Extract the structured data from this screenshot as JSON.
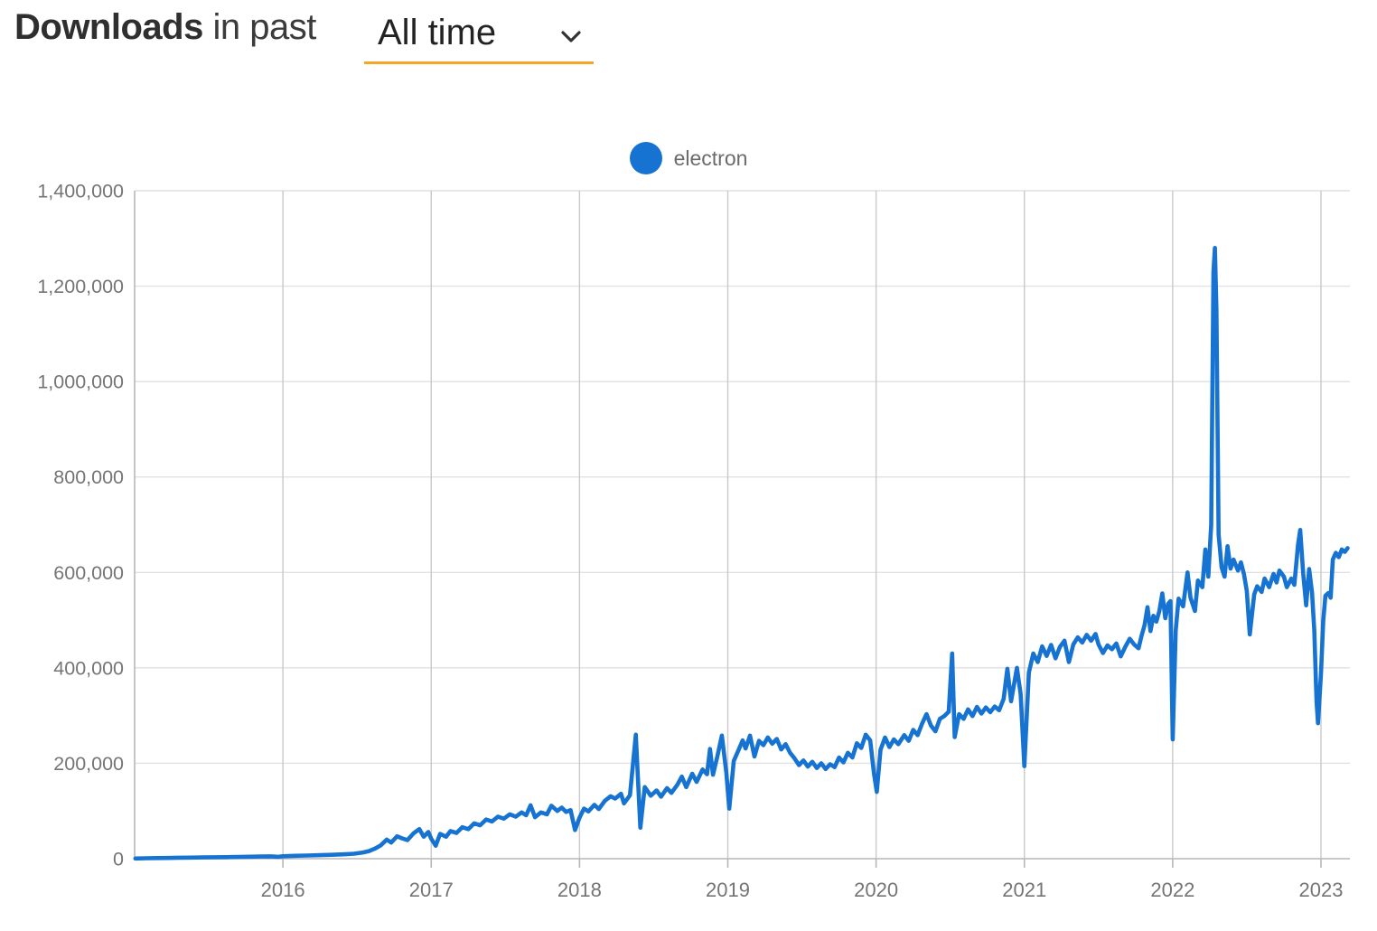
{
  "header": {
    "title_bold": "Downloads",
    "title_connector": "in past",
    "range_value": "All time"
  },
  "colors": {
    "series_blue": "#1673d1",
    "accent_underline": "#f5a623",
    "axis_text": "#757575",
    "grid_line": "#e1e1e1",
    "year_grid_line": "#c9c9c9",
    "axis_line": "#b7b7b7",
    "title_text": "#2f2f2f",
    "legend_text": "#6b6b6b"
  },
  "chart_data": {
    "type": "line",
    "title": "Downloads in past All time",
    "legend_position": "top-center",
    "grid": true,
    "xlabel": "",
    "ylabel": "",
    "xlim": [
      2015.0,
      2023.195
    ],
    "ylim": [
      0,
      1400000
    ],
    "y_ticks": [
      {
        "v": 0,
        "label": "0"
      },
      {
        "v": 200000,
        "label": "200,000"
      },
      {
        "v": 400000,
        "label": "400,000"
      },
      {
        "v": 600000,
        "label": "600,000"
      },
      {
        "v": 800000,
        "label": "800,000"
      },
      {
        "v": 1000000,
        "label": "1,000,000"
      },
      {
        "v": 1200000,
        "label": "1,200,000"
      },
      {
        "v": 1400000,
        "label": "1,400,000"
      }
    ],
    "x_ticks": [
      {
        "v": 2016,
        "label": "2016"
      },
      {
        "v": 2017,
        "label": "2017"
      },
      {
        "v": 2018,
        "label": "2018"
      },
      {
        "v": 2019,
        "label": "2019"
      },
      {
        "v": 2020,
        "label": "2020"
      },
      {
        "v": 2021,
        "label": "2021"
      },
      {
        "v": 2022,
        "label": "2022"
      },
      {
        "v": 2023,
        "label": "2023"
      }
    ],
    "series": [
      {
        "name": "electron",
        "color": "#1673d1",
        "points": [
          [
            2015.005,
            400
          ],
          [
            2015.08,
            900
          ],
          [
            2015.15,
            1300
          ],
          [
            2015.22,
            1600
          ],
          [
            2015.3,
            2000
          ],
          [
            2015.38,
            2300
          ],
          [
            2015.46,
            2600
          ],
          [
            2015.54,
            3000
          ],
          [
            2015.62,
            3300
          ],
          [
            2015.7,
            3700
          ],
          [
            2015.78,
            4100
          ],
          [
            2015.85,
            4500
          ],
          [
            2015.92,
            5000
          ],
          [
            2015.97,
            4000
          ],
          [
            2016.0,
            5200
          ],
          [
            2016.08,
            6000
          ],
          [
            2016.16,
            6600
          ],
          [
            2016.25,
            7300
          ],
          [
            2016.33,
            8100
          ],
          [
            2016.42,
            9300
          ],
          [
            2016.48,
            10500
          ],
          [
            2016.54,
            13000
          ],
          [
            2016.58,
            16000
          ],
          [
            2016.62,
            21000
          ],
          [
            2016.66,
            28000
          ],
          [
            2016.7,
            40000
          ],
          [
            2016.73,
            34000
          ],
          [
            2016.77,
            47000
          ],
          [
            2016.8,
            43000
          ],
          [
            2016.84,
            39000
          ],
          [
            2016.88,
            53000
          ],
          [
            2016.92,
            62000
          ],
          [
            2016.95,
            46000
          ],
          [
            2016.98,
            56000
          ],
          [
            2017.0,
            42000
          ],
          [
            2017.03,
            27000
          ],
          [
            2017.06,
            52000
          ],
          [
            2017.1,
            46000
          ],
          [
            2017.13,
            58000
          ],
          [
            2017.17,
            54000
          ],
          [
            2017.21,
            66000
          ],
          [
            2017.25,
            62000
          ],
          [
            2017.29,
            74000
          ],
          [
            2017.33,
            70000
          ],
          [
            2017.37,
            82000
          ],
          [
            2017.41,
            78000
          ],
          [
            2017.45,
            88000
          ],
          [
            2017.49,
            84000
          ],
          [
            2017.53,
            93000
          ],
          [
            2017.57,
            88000
          ],
          [
            2017.61,
            97000
          ],
          [
            2017.64,
            91000
          ],
          [
            2017.67,
            112000
          ],
          [
            2017.7,
            87000
          ],
          [
            2017.74,
            97000
          ],
          [
            2017.78,
            93000
          ],
          [
            2017.81,
            111000
          ],
          [
            2017.85,
            100000
          ],
          [
            2017.88,
            107000
          ],
          [
            2017.91,
            98000
          ],
          [
            2017.94,
            102000
          ],
          [
            2017.97,
            60000
          ],
          [
            2018.0,
            86000
          ],
          [
            2018.03,
            105000
          ],
          [
            2018.06,
            99000
          ],
          [
            2018.1,
            113000
          ],
          [
            2018.13,
            104000
          ],
          [
            2018.17,
            121000
          ],
          [
            2018.21,
            131000
          ],
          [
            2018.24,
            126000
          ],
          [
            2018.28,
            136000
          ],
          [
            2018.3,
            116000
          ],
          [
            2018.34,
            133000
          ],
          [
            2018.38,
            260000
          ],
          [
            2018.41,
            65000
          ],
          [
            2018.44,
            150000
          ],
          [
            2018.48,
            132000
          ],
          [
            2018.52,
            143000
          ],
          [
            2018.55,
            130000
          ],
          [
            2018.59,
            148000
          ],
          [
            2018.62,
            138000
          ],
          [
            2018.66,
            155000
          ],
          [
            2018.69,
            172000
          ],
          [
            2018.72,
            150000
          ],
          [
            2018.76,
            178000
          ],
          [
            2018.79,
            161000
          ],
          [
            2018.83,
            187000
          ],
          [
            2018.86,
            177000
          ],
          [
            2018.88,
            230000
          ],
          [
            2018.9,
            176000
          ],
          [
            2018.93,
            215000
          ],
          [
            2018.96,
            258000
          ],
          [
            2018.99,
            180000
          ],
          [
            2019.01,
            105000
          ],
          [
            2019.04,
            205000
          ],
          [
            2019.07,
            226000
          ],
          [
            2019.1,
            248000
          ],
          [
            2019.12,
            231000
          ],
          [
            2019.15,
            258000
          ],
          [
            2019.18,
            214000
          ],
          [
            2019.21,
            247000
          ],
          [
            2019.24,
            238000
          ],
          [
            2019.27,
            254000
          ],
          [
            2019.3,
            241000
          ],
          [
            2019.33,
            251000
          ],
          [
            2019.36,
            229000
          ],
          [
            2019.39,
            240000
          ],
          [
            2019.42,
            222000
          ],
          [
            2019.45,
            210000
          ],
          [
            2019.48,
            196000
          ],
          [
            2019.51,
            206000
          ],
          [
            2019.54,
            193000
          ],
          [
            2019.57,
            203000
          ],
          [
            2019.6,
            190000
          ],
          [
            2019.63,
            200000
          ],
          [
            2019.66,
            188000
          ],
          [
            2019.69,
            198000
          ],
          [
            2019.72,
            192000
          ],
          [
            2019.75,
            212000
          ],
          [
            2019.78,
            202000
          ],
          [
            2019.81,
            222000
          ],
          [
            2019.84,
            212000
          ],
          [
            2019.87,
            242000
          ],
          [
            2019.9,
            232000
          ],
          [
            2019.93,
            260000
          ],
          [
            2019.96,
            248000
          ],
          [
            2019.985,
            180000
          ],
          [
            2020.005,
            140000
          ],
          [
            2020.03,
            228000
          ],
          [
            2020.06,
            254000
          ],
          [
            2020.09,
            234000
          ],
          [
            2020.12,
            250000
          ],
          [
            2020.15,
            240000
          ],
          [
            2020.19,
            259000
          ],
          [
            2020.22,
            247000
          ],
          [
            2020.25,
            270000
          ],
          [
            2020.28,
            259000
          ],
          [
            2020.31,
            283000
          ],
          [
            2020.34,
            303000
          ],
          [
            2020.37,
            279000
          ],
          [
            2020.4,
            267000
          ],
          [
            2020.43,
            293000
          ],
          [
            2020.46,
            299000
          ],
          [
            2020.49,
            308000
          ],
          [
            2020.513,
            430000
          ],
          [
            2020.53,
            255000
          ],
          [
            2020.56,
            303000
          ],
          [
            2020.59,
            293000
          ],
          [
            2020.62,
            313000
          ],
          [
            2020.65,
            299000
          ],
          [
            2020.68,
            318000
          ],
          [
            2020.71,
            304000
          ],
          [
            2020.74,
            317000
          ],
          [
            2020.77,
            307000
          ],
          [
            2020.8,
            319000
          ],
          [
            2020.83,
            311000
          ],
          [
            2020.86,
            335000
          ],
          [
            2020.885,
            398000
          ],
          [
            2020.91,
            330000
          ],
          [
            2020.95,
            400000
          ],
          [
            2020.975,
            345000
          ],
          [
            2021.0,
            194000
          ],
          [
            2021.03,
            390000
          ],
          [
            2021.06,
            430000
          ],
          [
            2021.09,
            412000
          ],
          [
            2021.12,
            445000
          ],
          [
            2021.15,
            425000
          ],
          [
            2021.18,
            448000
          ],
          [
            2021.21,
            420000
          ],
          [
            2021.24,
            444000
          ],
          [
            2021.27,
            457000
          ],
          [
            2021.3,
            412000
          ],
          [
            2021.33,
            449000
          ],
          [
            2021.36,
            464000
          ],
          [
            2021.39,
            453000
          ],
          [
            2021.42,
            469000
          ],
          [
            2021.45,
            457000
          ],
          [
            2021.48,
            471000
          ],
          [
            2021.5,
            449000
          ],
          [
            2021.53,
            431000
          ],
          [
            2021.56,
            447000
          ],
          [
            2021.59,
            439000
          ],
          [
            2021.62,
            451000
          ],
          [
            2021.65,
            424000
          ],
          [
            2021.68,
            444000
          ],
          [
            2021.71,
            461000
          ],
          [
            2021.74,
            449000
          ],
          [
            2021.77,
            441000
          ],
          [
            2021.79,
            467000
          ],
          [
            2021.81,
            489000
          ],
          [
            2021.83,
            527000
          ],
          [
            2021.85,
            477000
          ],
          [
            2021.87,
            509000
          ],
          [
            2021.89,
            497000
          ],
          [
            2021.91,
            519000
          ],
          [
            2021.93,
            556000
          ],
          [
            2021.95,
            504000
          ],
          [
            2021.97,
            534000
          ],
          [
            2021.985,
            540000
          ],
          [
            2022.0,
            250000
          ],
          [
            2022.02,
            478000
          ],
          [
            2022.04,
            545000
          ],
          [
            2022.07,
            529000
          ],
          [
            2022.1,
            600000
          ],
          [
            2022.12,
            547000
          ],
          [
            2022.15,
            519000
          ],
          [
            2022.17,
            583000
          ],
          [
            2022.2,
            569000
          ],
          [
            2022.22,
            648000
          ],
          [
            2022.24,
            591000
          ],
          [
            2022.26,
            700000
          ],
          [
            2022.275,
            1230000
          ],
          [
            2022.285,
            1280000
          ],
          [
            2022.295,
            1150000
          ],
          [
            2022.31,
            680000
          ],
          [
            2022.33,
            611000
          ],
          [
            2022.35,
            591000
          ],
          [
            2022.37,
            655000
          ],
          [
            2022.39,
            608000
          ],
          [
            2022.41,
            627000
          ],
          [
            2022.44,
            604000
          ],
          [
            2022.46,
            621000
          ],
          [
            2022.48,
            597000
          ],
          [
            2022.5,
            561000
          ],
          [
            2022.52,
            470000
          ],
          [
            2022.55,
            554000
          ],
          [
            2022.57,
            571000
          ],
          [
            2022.6,
            559000
          ],
          [
            2022.62,
            587000
          ],
          [
            2022.65,
            569000
          ],
          [
            2022.68,
            597000
          ],
          [
            2022.7,
            579000
          ],
          [
            2022.72,
            604000
          ],
          [
            2022.75,
            591000
          ],
          [
            2022.77,
            569000
          ],
          [
            2022.8,
            587000
          ],
          [
            2022.82,
            574000
          ],
          [
            2022.845,
            658000
          ],
          [
            2022.86,
            689000
          ],
          [
            2022.88,
            598000
          ],
          [
            2022.9,
            531000
          ],
          [
            2022.92,
            607000
          ],
          [
            2022.94,
            558000
          ],
          [
            2022.955,
            478000
          ],
          [
            2022.97,
            330000
          ],
          [
            2022.98,
            284000
          ],
          [
            2023.0,
            388000
          ],
          [
            2023.015,
            498000
          ],
          [
            2023.03,
            551000
          ],
          [
            2023.05,
            557000
          ],
          [
            2023.065,
            547000
          ],
          [
            2023.08,
            627000
          ],
          [
            2023.1,
            641000
          ],
          [
            2023.12,
            632000
          ],
          [
            2023.14,
            648000
          ],
          [
            2023.16,
            643000
          ],
          [
            2023.18,
            651000
          ]
        ]
      }
    ]
  }
}
